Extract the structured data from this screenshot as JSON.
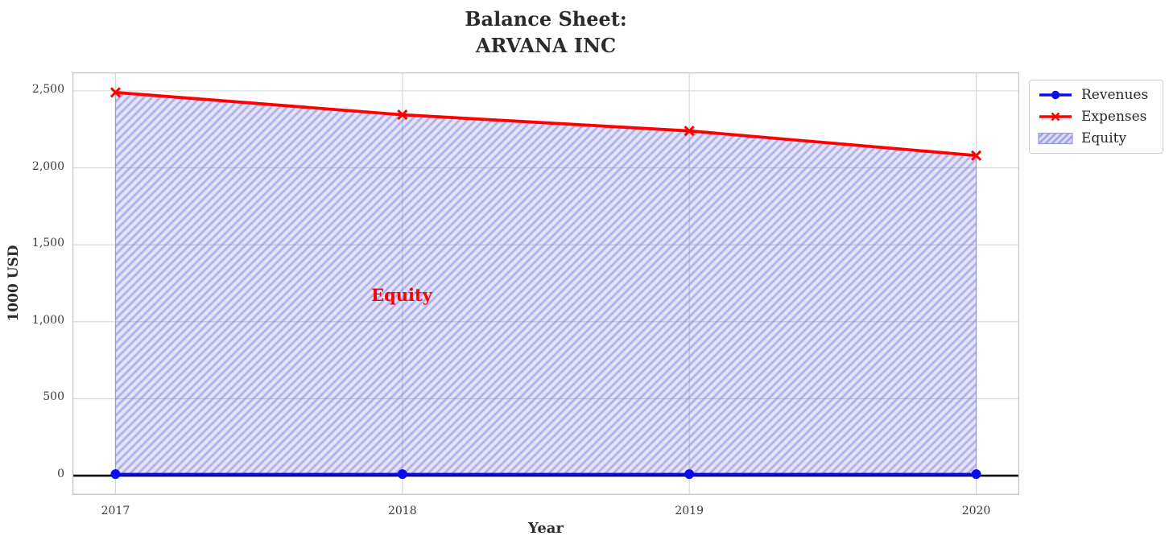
{
  "title": {
    "line1": "Balance Sheet:",
    "line2": "ARVANA INC"
  },
  "axes": {
    "xlabel": "Year",
    "ylabel": "1000 USD",
    "x_ticks": [
      "2017",
      "2018",
      "2019",
      "2020"
    ],
    "y_ticks": [
      "0",
      "500",
      "1,000",
      "1,500",
      "2,000",
      "2,500"
    ]
  },
  "annotation": {
    "text": "Equity",
    "color": "#ff0000"
  },
  "legend": {
    "items": [
      {
        "label": "Revenues"
      },
      {
        "label": "Expenses"
      },
      {
        "label": "Equity"
      }
    ],
    "swatch_bg": "#d9d9f6",
    "swatch_border": "#9a9ae0"
  },
  "colors": {
    "grid": "#d6d6d6",
    "spine": "#c4c4c4",
    "baseline": "#000000",
    "background": "#ffffff",
    "annotation_red": "#ff0000"
  },
  "chart_data": {
    "type": "line",
    "title": "Balance Sheet:\nARVANA INC",
    "xlabel": "Year",
    "ylabel": "1000 USD",
    "x": [
      2017,
      2018,
      2019,
      2020
    ],
    "series": [
      {
        "name": "Revenues",
        "color": "#0b0bee",
        "marker": "circle",
        "values": [
          10,
          10,
          10,
          10
        ]
      },
      {
        "name": "Expenses",
        "color": "#ff0000",
        "marker": "x",
        "values": [
          2490,
          2345,
          2240,
          2080
        ]
      }
    ],
    "area": {
      "name": "Equity",
      "between": [
        "Revenues",
        "Expenses"
      ],
      "fill": "#5555dd",
      "fill_opacity": 0.16,
      "hatch": "/",
      "hatch_color": "#6a6ad8",
      "edge_color": "#7777cc"
    },
    "baseline": 0,
    "grid": true,
    "legend_position": "upper right outside",
    "x_tick_values": [
      2017,
      2018,
      2019,
      2020
    ],
    "y_tick_values": [
      0,
      500,
      1000,
      1500,
      2000,
      2500
    ],
    "xlim": [
      2016.85,
      2020.15
    ],
    "ylim": [
      -125,
      2620
    ],
    "annotation": {
      "text": "Equity",
      "x": 2018,
      "y": 1170
    }
  }
}
